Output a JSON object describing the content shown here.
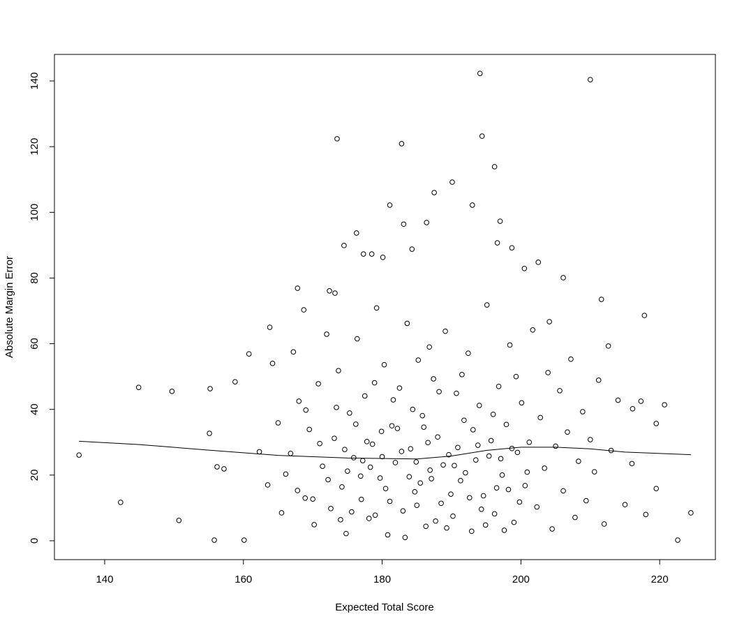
{
  "chart_data": {
    "type": "scatter",
    "x_label": "Expected Total Score",
    "y_label": "Absolute Margin Error",
    "color": "#000000",
    "xlim": [
      132.76,
      228.03
    ],
    "ylim": [
      -5.74,
      148.08
    ],
    "xticks": [
      140,
      160,
      180,
      200,
      220
    ],
    "yticks": [
      0,
      20,
      40,
      60,
      80,
      100,
      120,
      140
    ],
    "x": [
      136.3,
      142.3,
      144.9,
      149.7,
      150.7,
      155.2,
      155.1,
      155.8,
      156.2,
      157.2,
      158.8,
      160.1,
      160.8,
      173.5,
      182.8,
      181.1,
      194.1,
      194.4,
      196.2,
      187.5,
      190.1,
      210.0,
      193.0,
      174.5,
      176.3,
      211.6,
      217.8,
      212.6,
      220.7,
      219.5,
      219.5,
      222.6,
      224.5,
      217.3,
      216.1,
      204.1,
      206.1,
      202.5,
      200.5,
      196.6,
      197.0,
      198.7,
      184.3,
      186.4,
      183.1,
      177.3,
      178.5,
      180.1,
      167.8,
      172.4,
      173.2,
      163.8,
      168.7,
      162.3,
      163.5,
      164.2,
      165.0,
      166.1,
      167.2,
      168.0,
      168.9,
      169.5,
      170.2,
      170.8,
      171.4,
      172.0,
      172.6,
      173.1,
      173.7,
      174.2,
      174.8,
      175.3,
      175.9,
      176.4,
      177.0,
      177.5,
      178.1,
      178.6,
      179.2,
      179.7,
      180.3,
      180.8,
      181.4,
      181.9,
      182.5,
      183.0,
      183.6,
      184.1,
      184.7,
      185.2,
      185.8,
      186.3,
      186.9,
      187.4,
      188.0,
      188.5,
      189.1,
      189.6,
      190.2,
      190.7,
      191.3,
      191.8,
      192.4,
      192.9,
      193.5,
      194.0,
      194.6,
      195.1,
      195.7,
      196.2,
      196.8,
      197.3,
      197.9,
      198.4,
      199.0,
      199.5,
      200.1,
      200.6,
      201.2,
      201.7,
      202.3,
      202.8,
      203.4,
      203.9,
      204.5,
      205.0,
      205.6,
      206.1,
      206.7,
      207.2,
      207.8,
      208.3,
      208.9,
      209.4,
      210.0,
      210.6,
      211.2,
      212.0,
      213.0,
      214.0,
      215.0,
      216.0,
      218.0,
      178.3,
      179.9,
      181.1,
      182.8,
      184.4,
      185.5,
      186.6,
      187.7,
      188.8,
      189.9,
      190.9,
      192.0,
      193.1,
      194.3,
      195.4,
      196.5,
      197.6,
      198.7,
      199.8,
      200.9,
      176.9,
      177.8,
      179.0,
      180.0,
      181.6,
      183.3,
      184.9,
      186.0,
      187.1,
      188.2,
      189.3,
      190.4,
      191.5,
      192.6,
      193.8,
      194.9,
      196.0,
      197.1,
      198.2,
      199.3,
      174.6,
      175.6,
      176.2,
      177.2,
      178.9,
      180.5,
      182.2,
      183.9,
      185.0,
      186.8,
      165.5,
      166.8,
      167.8,
      169.0,
      170.0,
      171.0,
      172.2,
      173.4,
      174.0,
      175.0
    ],
    "values": [
      26.1,
      11.7,
      46.7,
      45.5,
      6.2,
      46.3,
      32.7,
      0.2,
      22.5,
      21.9,
      48.4,
      0.2,
      56.9,
      122.4,
      120.9,
      102.2,
      142.3,
      123.2,
      113.9,
      106.0,
      109.2,
      140.4,
      102.2,
      89.9,
      93.7,
      73.5,
      68.6,
      59.3,
      41.4,
      35.7,
      15.9,
      0.2,
      8.5,
      42.5,
      40.2,
      66.7,
      80.1,
      84.8,
      82.9,
      90.7,
      97.3,
      89.2,
      88.8,
      96.9,
      96.4,
      87.3,
      87.3,
      86.3,
      76.9,
      76.1,
      75.4,
      65.0,
      70.3,
      27.1,
      17.0,
      54.0,
      35.9,
      20.3,
      57.5,
      42.5,
      13.0,
      33.9,
      4.9,
      47.8,
      22.7,
      62.9,
      9.8,
      31.2,
      51.8,
      16.4,
      2.2,
      38.9,
      25.3,
      61.5,
      12.6,
      44.1,
      6.8,
      29.4,
      70.9,
      19.1,
      53.6,
      1.8,
      35.0,
      23.8,
      46.5,
      9.1,
      66.2,
      28.0,
      14.9,
      55.0,
      38.1,
      4.4,
      21.5,
      49.3,
      31.6,
      11.4,
      63.8,
      26.2,
      7.5,
      44.9,
      18.3,
      36.7,
      57.1,
      2.9,
      24.6,
      41.2,
      13.7,
      71.8,
      30.5,
      8.2,
      47.0,
      20.0,
      35.4,
      59.6,
      5.6,
      26.9,
      42.0,
      16.8,
      30.0,
      64.2,
      10.3,
      37.5,
      22.1,
      51.2,
      3.6,
      28.8,
      45.7,
      15.2,
      33.1,
      55.3,
      7.1,
      24.2,
      39.3,
      12.2,
      30.8,
      21.0,
      48.9,
      5.1,
      27.5,
      42.8,
      11.0,
      23.5,
      8.0,
      22.4,
      33.3,
      12.0,
      27.2,
      40.0,
      17.6,
      29.9,
      6.0,
      23.1,
      14.2,
      28.4,
      20.7,
      33.8,
      9.6,
      25.8,
      16.1,
      3.2,
      28.1,
      11.8,
      20.9,
      19.7,
      30.2,
      7.8,
      25.6,
      42.9,
      1.0,
      24.0,
      34.6,
      18.9,
      45.4,
      3.9,
      22.9,
      50.6,
      13.1,
      29.1,
      4.8,
      38.5,
      25.0,
      15.6,
      50.0,
      27.8,
      8.8,
      35.5,
      24.4,
      48.1,
      15.9,
      34.2,
      19.5,
      10.8,
      59.0,
      8.5,
      26.6,
      15.3,
      39.8,
      12.7,
      29.6,
      18.6,
      40.6,
      6.4,
      21.2
    ],
    "trend": {
      "x": [
        136.3,
        145,
        155,
        165,
        175,
        185,
        190,
        195,
        200,
        205,
        210,
        215,
        224.5
      ],
      "values": [
        30.3,
        29.3,
        27.6,
        26.0,
        25.2,
        24.9,
        25.8,
        27.5,
        28.5,
        28.5,
        28.0,
        27.0,
        26.2
      ]
    }
  }
}
